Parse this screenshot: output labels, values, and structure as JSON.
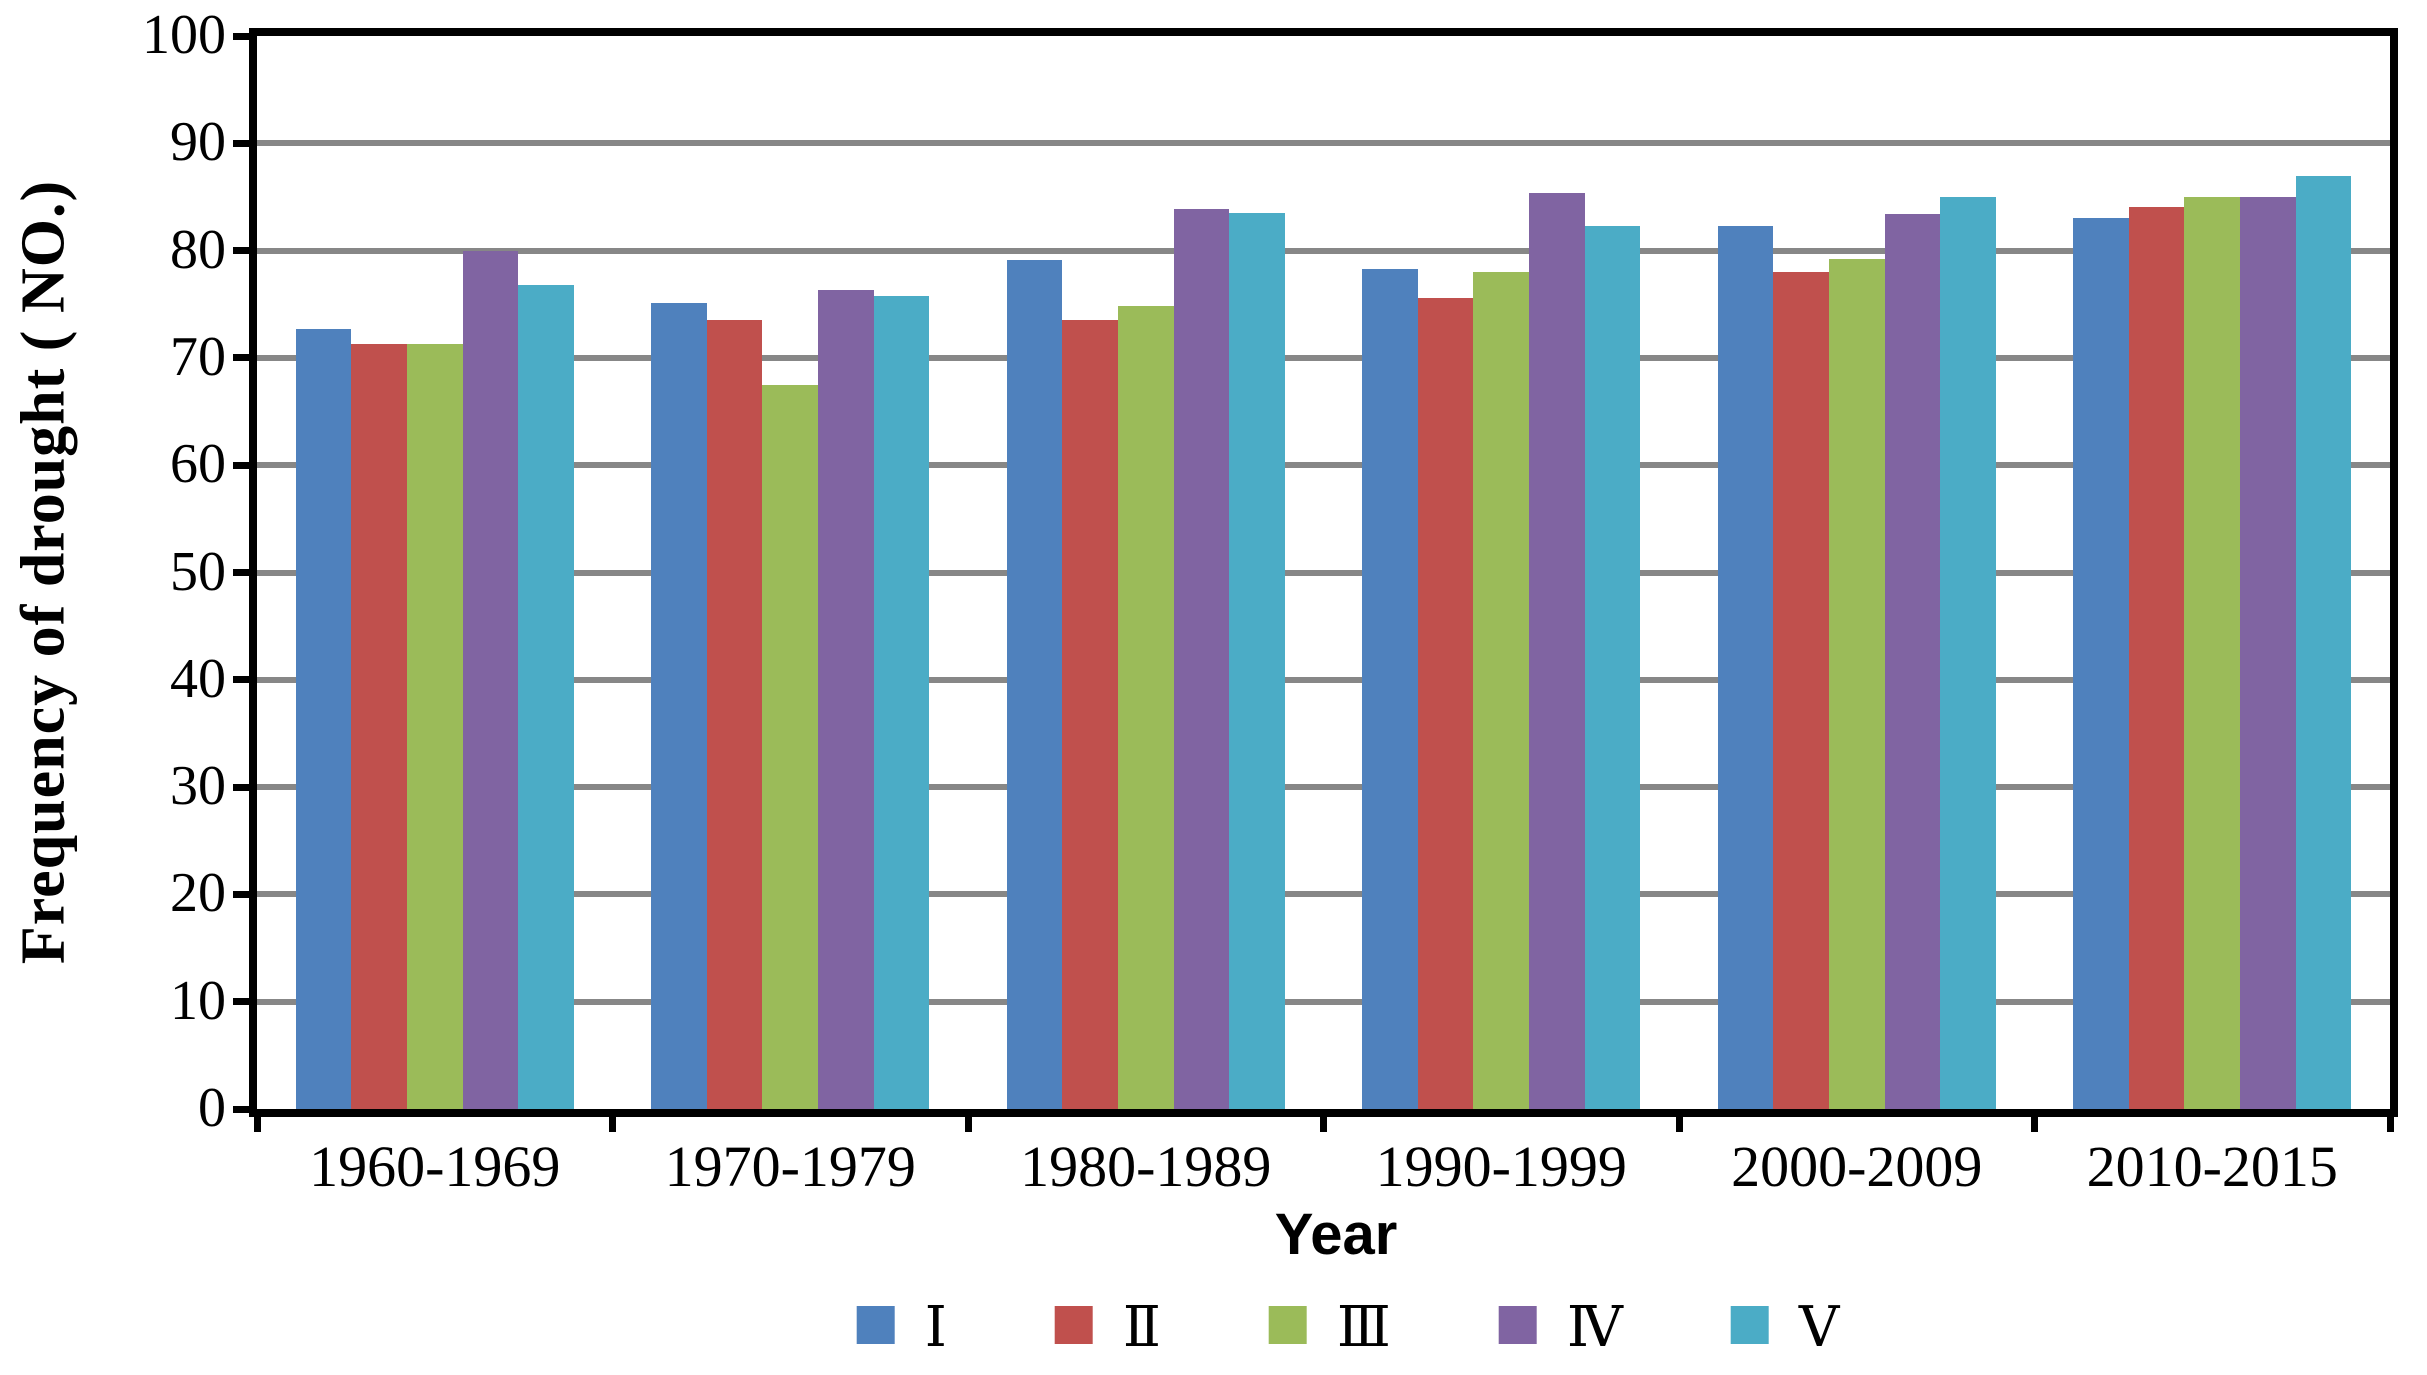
{
  "chart_data": {
    "type": "bar",
    "title": "",
    "xlabel": "Year",
    "ylabel": "Frequency of drought ( NO.)",
    "categories": [
      "1960-1969",
      "1970-1979",
      "1980-1989",
      "1990-1999",
      "2000-2009",
      "2010-2015"
    ],
    "series": [
      {
        "name": "Ⅰ",
        "color": "#4F81BD",
        "values": [
          72.7,
          75.1,
          79.1,
          78.3,
          82.3,
          83.0
        ]
      },
      {
        "name": "Ⅱ",
        "color": "#C0504D",
        "values": [
          71.3,
          73.5,
          73.5,
          75.6,
          78.0,
          84.1
        ]
      },
      {
        "name": "Ⅲ",
        "color": "#9BBB59",
        "values": [
          71.3,
          67.5,
          74.8,
          78.0,
          79.2,
          85.0
        ]
      },
      {
        "name": "Ⅳ",
        "color": "#8064A2",
        "values": [
          80.0,
          76.3,
          83.9,
          85.4,
          83.4,
          85.0
        ]
      },
      {
        "name": "Ⅴ",
        "color": "#4BACC6",
        "values": [
          76.8,
          75.8,
          83.5,
          82.3,
          85.0,
          87.0
        ]
      }
    ],
    "ylim": [
      0,
      100
    ],
    "ytick_step": 10,
    "ytick_labels": [
      "0",
      "10",
      "20",
      "30",
      "40",
      "50",
      "60",
      "70",
      "80",
      "90",
      "100"
    ],
    "grid": true,
    "gridline_color": "#878787",
    "axis_color": "#000000",
    "legend_position": "bottom"
  }
}
